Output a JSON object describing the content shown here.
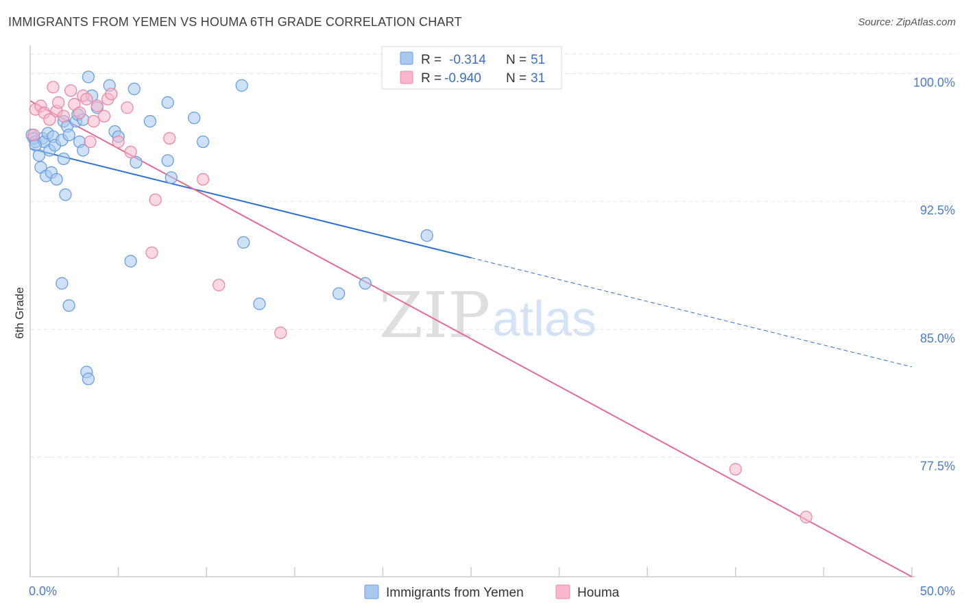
{
  "title": "IMMIGRANTS FROM YEMEN VS HOUMA 6TH GRADE CORRELATION CHART",
  "source": "Source: ZipAtlas.com",
  "watermark": {
    "zip": "ZIP",
    "atlas": "atlas"
  },
  "legend": {
    "rows": [
      {
        "r_label": "R =",
        "r_value": "-0.314",
        "n_label": "N =",
        "n_value": "51",
        "color": "#a8c8f0",
        "stroke": "#6b9ee0"
      },
      {
        "r_label": "R =",
        "r_value": "-0.940",
        "n_label": "N =",
        "n_value": "31",
        "color": "#f7b8cb",
        "stroke": "#e889a8"
      }
    ]
  },
  "bottom_legend": [
    {
      "label": "Immigrants from Yemen",
      "color": "#a8c8f0",
      "stroke": "#6b9ee0"
    },
    {
      "label": "Houma",
      "color": "#f7b8cb",
      "stroke": "#e889a8"
    }
  ],
  "chart_data": {
    "type": "scatter",
    "ylabel": "6th Grade",
    "xlim": [
      0,
      50
    ],
    "ylim": [
      70.5,
      101.5
    ],
    "x_tick_labels": {
      "left": "0.0%",
      "right": "50.0%"
    },
    "y_ticks": [
      {
        "value": 100.0,
        "label": "100.0%"
      },
      {
        "value": 92.5,
        "label": "92.5%"
      },
      {
        "value": 85.0,
        "label": "85.0%"
      },
      {
        "value": 77.5,
        "label": "77.5%"
      }
    ],
    "grid": true,
    "legend_position": "top-center",
    "series": [
      {
        "name": "Immigrants from Yemen",
        "color": "#6b9ee0",
        "fill": "#a8c8f0",
        "trend": {
          "x0": 0,
          "y0": 95.6,
          "x1": 25,
          "y1": 89.2,
          "dash_to_x": 50,
          "dash_to_y": 82.8,
          "line_color": "#2e6fd0"
        },
        "points": [
          [
            0.1,
            96.4
          ],
          [
            0.2,
            96.2
          ],
          [
            0.3,
            96.0
          ],
          [
            0.5,
            95.2
          ],
          [
            0.6,
            94.5
          ],
          [
            0.7,
            96.2
          ],
          [
            0.8,
            96.0
          ],
          [
            0.9,
            94.0
          ],
          [
            1.0,
            96.5
          ],
          [
            1.1,
            95.5
          ],
          [
            1.2,
            94.2
          ],
          [
            1.3,
            96.3
          ],
          [
            1.4,
            95.8
          ],
          [
            1.5,
            93.8
          ],
          [
            1.8,
            96.1
          ],
          [
            1.9,
            97.2
          ],
          [
            2.1,
            96.9
          ],
          [
            2.2,
            96.4
          ],
          [
            2.6,
            97.2
          ],
          [
            2.7,
            97.6
          ],
          [
            2.8,
            96.0
          ],
          [
            3.0,
            97.3
          ],
          [
            3.3,
            99.8
          ],
          [
            3.5,
            98.7
          ],
          [
            3.8,
            98.0
          ],
          [
            4.5,
            99.3
          ],
          [
            4.8,
            96.6
          ],
          [
            5.0,
            96.3
          ],
          [
            5.9,
            99.1
          ],
          [
            6.0,
            94.8
          ],
          [
            6.8,
            97.2
          ],
          [
            7.8,
            98.3
          ],
          [
            7.8,
            94.9
          ],
          [
            8.0,
            93.9
          ],
          [
            9.3,
            97.4
          ],
          [
            9.8,
            96.0
          ],
          [
            12.0,
            99.3
          ],
          [
            12.1,
            90.1
          ],
          [
            2.0,
            92.9
          ],
          [
            1.9,
            95.0
          ],
          [
            3.0,
            95.5
          ],
          [
            5.7,
            89.0
          ],
          [
            1.8,
            87.7
          ],
          [
            2.2,
            86.4
          ],
          [
            3.2,
            82.5
          ],
          [
            3.3,
            82.1
          ],
          [
            13.0,
            86.5
          ],
          [
            17.5,
            87.1
          ],
          [
            19.0,
            87.7
          ],
          [
            22.5,
            90.5
          ],
          [
            0.3,
            95.8
          ]
        ]
      },
      {
        "name": "Houma",
        "color": "#e889a8",
        "fill": "#f7b8cb",
        "trend": {
          "x0": 0,
          "y0": 98.4,
          "x1": 50,
          "y1": 70.5,
          "line_color": "#e36a98"
        },
        "points": [
          [
            0.3,
            97.9
          ],
          [
            0.6,
            98.1
          ],
          [
            0.8,
            97.7
          ],
          [
            1.1,
            97.3
          ],
          [
            1.3,
            99.2
          ],
          [
            1.5,
            97.8
          ],
          [
            1.6,
            98.3
          ],
          [
            1.9,
            97.5
          ],
          [
            2.3,
            99.0
          ],
          [
            2.5,
            98.2
          ],
          [
            2.8,
            97.7
          ],
          [
            3.0,
            98.7
          ],
          [
            3.2,
            98.5
          ],
          [
            3.4,
            96.0
          ],
          [
            3.6,
            97.2
          ],
          [
            3.8,
            98.1
          ],
          [
            4.2,
            97.5
          ],
          [
            4.4,
            98.5
          ],
          [
            4.6,
            98.8
          ],
          [
            5.0,
            96.0
          ],
          [
            5.5,
            98.0
          ],
          [
            5.7,
            95.4
          ],
          [
            6.9,
            89.5
          ],
          [
            7.1,
            92.6
          ],
          [
            7.9,
            96.2
          ],
          [
            9.8,
            93.8
          ],
          [
            10.7,
            87.6
          ],
          [
            14.2,
            84.8
          ],
          [
            40.0,
            76.8
          ],
          [
            44.0,
            74.0
          ],
          [
            0.2,
            96.4
          ]
        ]
      }
    ]
  }
}
